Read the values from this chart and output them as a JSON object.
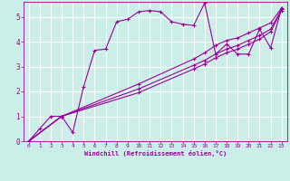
{
  "bg_color": "#cceee8",
  "line_color": "#990099",
  "grid_color": "#ffffff",
  "xlabel": "Windchill (Refroidissement éolien,°C)",
  "xlabel_color": "#990099",
  "xtick_color": "#990099",
  "ytick_color": "#990099",
  "xlim": [
    -0.5,
    23.5
  ],
  "ylim": [
    0,
    5.6
  ],
  "yticks": [
    0,
    1,
    2,
    3,
    4,
    5
  ],
  "xticks": [
    0,
    1,
    2,
    3,
    4,
    5,
    6,
    7,
    8,
    9,
    10,
    11,
    12,
    13,
    14,
    15,
    16,
    17,
    18,
    19,
    20,
    21,
    22,
    23
  ],
  "series": [
    {
      "x": [
        0,
        1,
        2,
        3,
        4,
        5,
        6,
        7,
        8,
        9,
        10,
        11,
        12,
        13,
        14,
        15,
        16,
        17,
        18,
        19,
        20,
        21,
        22,
        23
      ],
      "y": [
        0.0,
        0.5,
        1.0,
        1.0,
        0.35,
        2.2,
        3.65,
        3.7,
        4.8,
        4.9,
        5.2,
        5.25,
        5.2,
        4.8,
        4.7,
        4.65,
        5.55,
        3.5,
        3.9,
        3.5,
        3.5,
        4.5,
        3.75,
        5.35
      ]
    },
    {
      "x": [
        0,
        3,
        10,
        15,
        16,
        17,
        18,
        19,
        20,
        21,
        22,
        23
      ],
      "y": [
        0.0,
        1.0,
        2.3,
        3.3,
        3.55,
        3.85,
        4.05,
        4.15,
        4.35,
        4.55,
        4.75,
        5.35
      ]
    },
    {
      "x": [
        0,
        3,
        10,
        15,
        16,
        17,
        18,
        19,
        20,
        21,
        22,
        23
      ],
      "y": [
        0.0,
        1.0,
        2.1,
        3.05,
        3.25,
        3.5,
        3.7,
        3.85,
        4.05,
        4.25,
        4.5,
        5.3
      ]
    },
    {
      "x": [
        0,
        3,
        10,
        15,
        16,
        17,
        18,
        19,
        20,
        21,
        22,
        23
      ],
      "y": [
        0.0,
        1.0,
        1.95,
        2.9,
        3.1,
        3.35,
        3.55,
        3.7,
        3.9,
        4.1,
        4.4,
        5.25
      ]
    }
  ]
}
